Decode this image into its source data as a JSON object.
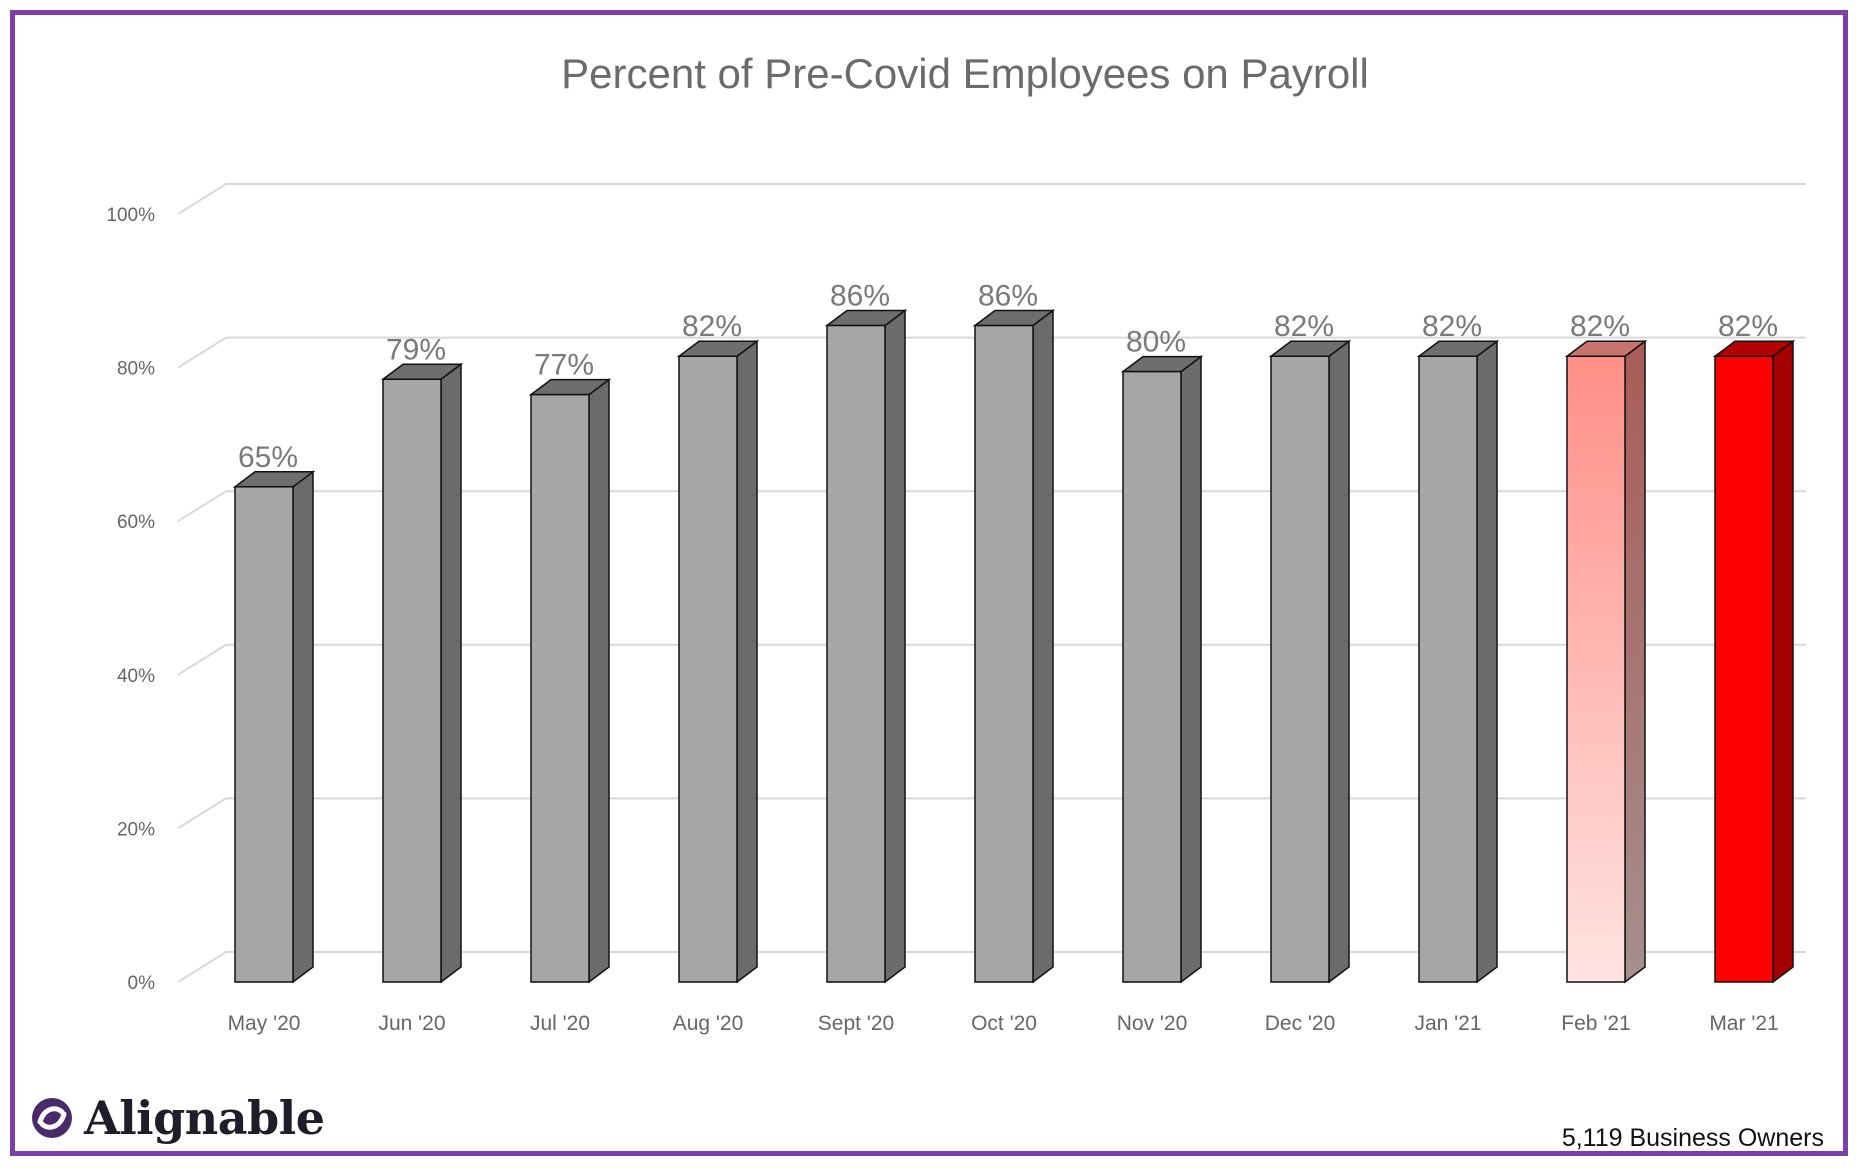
{
  "chart_data": {
    "type": "bar",
    "title": "Percent of Pre-Covid Employees on Payroll",
    "categories": [
      "May '20",
      "Jun '20",
      "Jul '20",
      "Aug '20",
      "Sept '20",
      "Oct '20",
      "Nov '20",
      "Dec '20",
      "Jan '21",
      "Feb '21",
      "Mar '21"
    ],
    "values": [
      65,
      79,
      77,
      82,
      86,
      86,
      80,
      82,
      82,
      82,
      82
    ],
    "value_labels": [
      "65%",
      "79%",
      "77%",
      "82%",
      "86%",
      "86%",
      "80%",
      "82%",
      "82%",
      "82%",
      "82%"
    ],
    "yticks": [
      "0%",
      "20%",
      "40%",
      "60%",
      "80%",
      "100%"
    ],
    "ylim": [
      0,
      100
    ],
    "grid": true,
    "style": "3d-column",
    "colors": {
      "default": "#a6a6a6",
      "feb21": "#ff8f87",
      "mar21": "#ff0000",
      "frame": "#7a3fa8"
    }
  },
  "brand": {
    "name": "Alignable"
  },
  "footnote": "5,119 Business Owners"
}
